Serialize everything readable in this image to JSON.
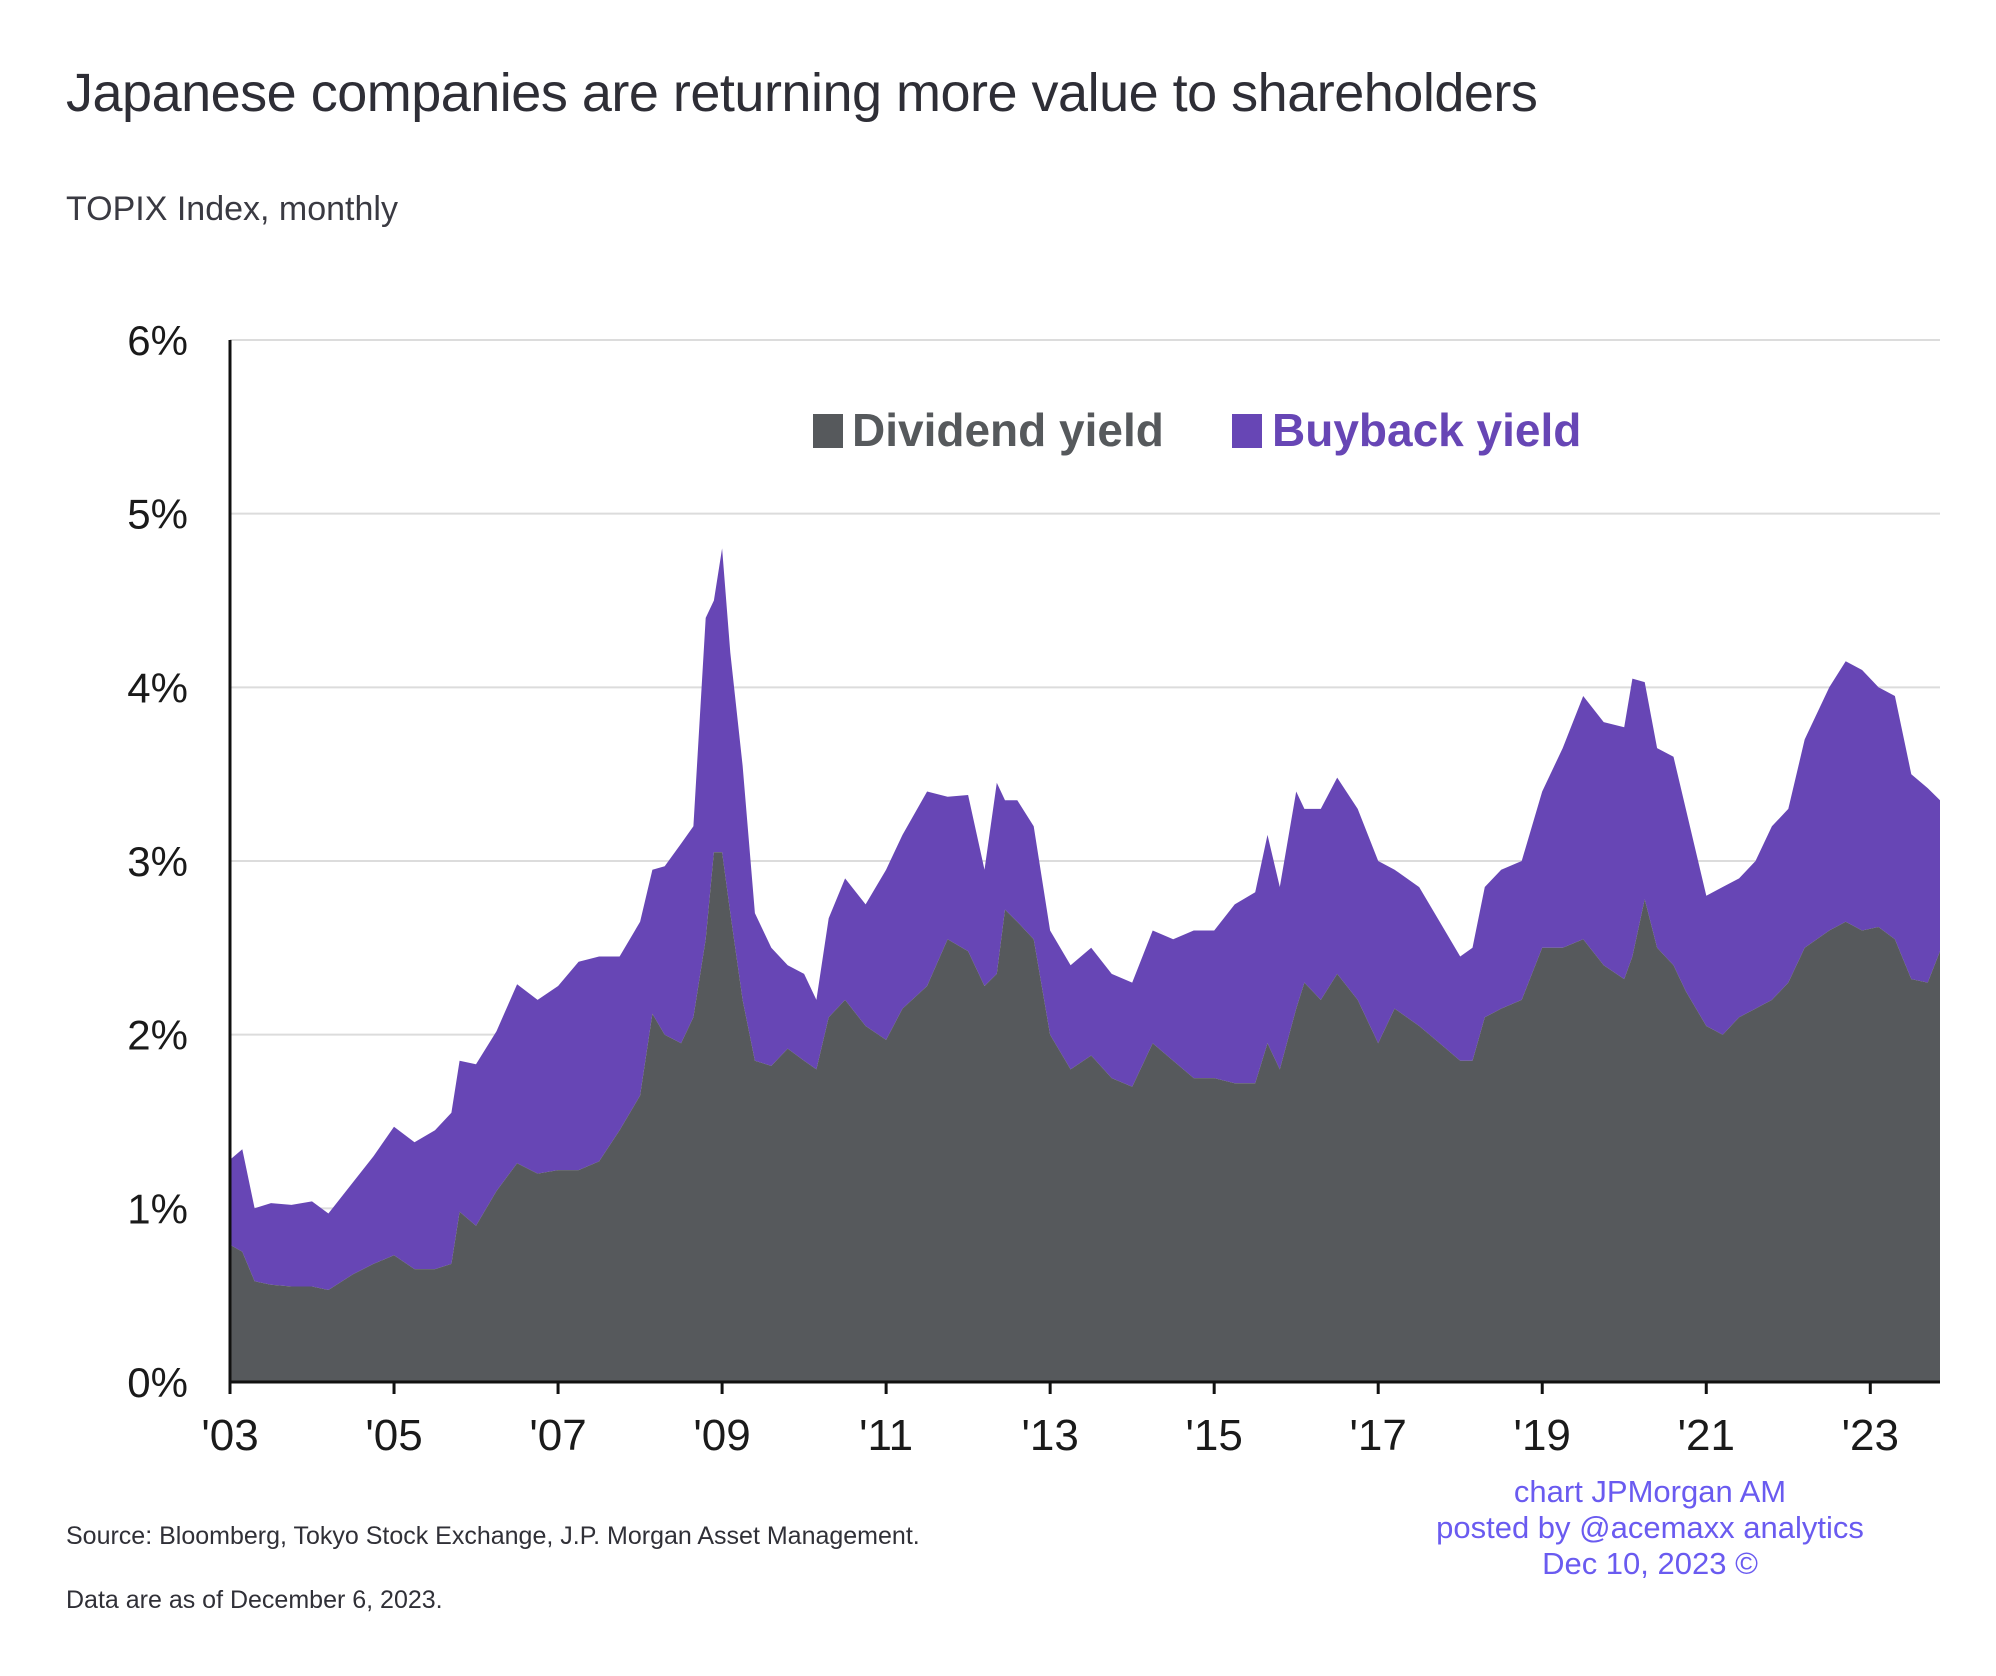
{
  "header": {
    "title": "Japanese companies are returning more value to shareholders",
    "subtitle": "TOPIX Index, monthly"
  },
  "footer": {
    "source": "Source: Bloomberg, Tokyo Stock Exchange, J.P. Morgan Asset Management.",
    "as_of": "Data are as of December 6, 2023."
  },
  "credit": {
    "line1": "chart JPMorgan AM",
    "line2": "posted by @acemaxx analytics",
    "line3": "Dec 10, 2023 ©"
  },
  "colors": {
    "dividend": "#56595c",
    "buyback": "#6746b5",
    "grid": "#dcdcdc",
    "axis": "#111111",
    "credit": "#6a5bf0"
  },
  "chart_data": {
    "type": "area",
    "stacked": true,
    "title": "Japanese companies are returning more value to shareholders",
    "subtitle": "TOPIX Index, monthly",
    "ylim": [
      0,
      6
    ],
    "yticks": [
      "0%",
      "1%",
      "2%",
      "3%",
      "4%",
      "5%",
      "6%"
    ],
    "xlim": [
      2003.0,
      2023.85
    ],
    "xticks": [
      {
        "x": 2003,
        "label": "'03"
      },
      {
        "x": 2005,
        "label": "'05"
      },
      {
        "x": 2007,
        "label": "'07"
      },
      {
        "x": 2009,
        "label": "'09"
      },
      {
        "x": 2011,
        "label": "'11"
      },
      {
        "x": 2013,
        "label": "'13"
      },
      {
        "x": 2015,
        "label": "'15"
      },
      {
        "x": 2017,
        "label": "'17"
      },
      {
        "x": 2019,
        "label": "'19"
      },
      {
        "x": 2021,
        "label": "'21"
      },
      {
        "x": 2023,
        "label": "'23"
      }
    ],
    "grid": true,
    "legend_position": "top-center",
    "series": [
      {
        "name": "Dividend yield",
        "color": "#56595c",
        "points": [
          [
            2003.0,
            0.79
          ],
          [
            2003.15,
            0.75
          ],
          [
            2003.3,
            0.58
          ],
          [
            2003.5,
            0.56
          ],
          [
            2003.75,
            0.55
          ],
          [
            2004.0,
            0.55
          ],
          [
            2004.2,
            0.53
          ],
          [
            2004.5,
            0.62
          ],
          [
            2004.75,
            0.68
          ],
          [
            2005.0,
            0.73
          ],
          [
            2005.25,
            0.65
          ],
          [
            2005.5,
            0.65
          ],
          [
            2005.7,
            0.68
          ],
          [
            2005.8,
            0.98
          ],
          [
            2006.0,
            0.9
          ],
          [
            2006.25,
            1.1
          ],
          [
            2006.5,
            1.26
          ],
          [
            2006.75,
            1.2
          ],
          [
            2007.0,
            1.22
          ],
          [
            2007.25,
            1.22
          ],
          [
            2007.5,
            1.27
          ],
          [
            2007.75,
            1.45
          ],
          [
            2008.0,
            1.65
          ],
          [
            2008.15,
            2.12
          ],
          [
            2008.3,
            2.0
          ],
          [
            2008.5,
            1.95
          ],
          [
            2008.65,
            2.1
          ],
          [
            2008.8,
            2.55
          ],
          [
            2008.9,
            3.05
          ],
          [
            2009.0,
            3.05
          ],
          [
            2009.1,
            2.7
          ],
          [
            2009.25,
            2.2
          ],
          [
            2009.4,
            1.85
          ],
          [
            2009.6,
            1.82
          ],
          [
            2009.8,
            1.92
          ],
          [
            2010.0,
            1.85
          ],
          [
            2010.15,
            1.8
          ],
          [
            2010.3,
            2.1
          ],
          [
            2010.5,
            2.2
          ],
          [
            2010.75,
            2.05
          ],
          [
            2011.0,
            1.97
          ],
          [
            2011.2,
            2.15
          ],
          [
            2011.5,
            2.28
          ],
          [
            2011.75,
            2.55
          ],
          [
            2012.0,
            2.48
          ],
          [
            2012.2,
            2.28
          ],
          [
            2012.35,
            2.35
          ],
          [
            2012.45,
            2.72
          ],
          [
            2012.6,
            2.65
          ],
          [
            2012.8,
            2.55
          ],
          [
            2013.0,
            2.0
          ],
          [
            2013.25,
            1.8
          ],
          [
            2013.5,
            1.88
          ],
          [
            2013.75,
            1.75
          ],
          [
            2014.0,
            1.7
          ],
          [
            2014.25,
            1.95
          ],
          [
            2014.5,
            1.85
          ],
          [
            2014.75,
            1.75
          ],
          [
            2015.0,
            1.75
          ],
          [
            2015.25,
            1.72
          ],
          [
            2015.5,
            1.72
          ],
          [
            2015.65,
            1.95
          ],
          [
            2015.8,
            1.8
          ],
          [
            2016.0,
            2.15
          ],
          [
            2016.1,
            2.3
          ],
          [
            2016.3,
            2.2
          ],
          [
            2016.5,
            2.35
          ],
          [
            2016.75,
            2.2
          ],
          [
            2017.0,
            1.95
          ],
          [
            2017.2,
            2.15
          ],
          [
            2017.5,
            2.05
          ],
          [
            2017.75,
            1.95
          ],
          [
            2018.0,
            1.85
          ],
          [
            2018.15,
            1.85
          ],
          [
            2018.3,
            2.1
          ],
          [
            2018.5,
            2.15
          ],
          [
            2018.75,
            2.2
          ],
          [
            2019.0,
            2.5
          ],
          [
            2019.25,
            2.5
          ],
          [
            2019.5,
            2.55
          ],
          [
            2019.75,
            2.4
          ],
          [
            2020.0,
            2.32
          ],
          [
            2020.1,
            2.45
          ],
          [
            2020.25,
            2.78
          ],
          [
            2020.4,
            2.5
          ],
          [
            2020.6,
            2.4
          ],
          [
            2020.75,
            2.25
          ],
          [
            2021.0,
            2.05
          ],
          [
            2021.2,
            2.0
          ],
          [
            2021.4,
            2.1
          ],
          [
            2021.6,
            2.15
          ],
          [
            2021.8,
            2.2
          ],
          [
            2022.0,
            2.3
          ],
          [
            2022.2,
            2.5
          ],
          [
            2022.5,
            2.6
          ],
          [
            2022.7,
            2.65
          ],
          [
            2022.9,
            2.6
          ],
          [
            2023.1,
            2.62
          ],
          [
            2023.3,
            2.55
          ],
          [
            2023.5,
            2.32
          ],
          [
            2023.7,
            2.3
          ],
          [
            2023.85,
            2.48
          ]
        ]
      },
      {
        "name": "Buyback yield",
        "color": "#6746b5",
        "points": [
          [
            2003.0,
            0.49
          ],
          [
            2003.15,
            0.59
          ],
          [
            2003.3,
            0.42
          ],
          [
            2003.5,
            0.47
          ],
          [
            2003.75,
            0.47
          ],
          [
            2004.0,
            0.49
          ],
          [
            2004.2,
            0.44
          ],
          [
            2004.5,
            0.53
          ],
          [
            2004.75,
            0.62
          ],
          [
            2005.0,
            0.74
          ],
          [
            2005.25,
            0.73
          ],
          [
            2005.5,
            0.8
          ],
          [
            2005.7,
            0.87
          ],
          [
            2005.8,
            0.87
          ],
          [
            2006.0,
            0.93
          ],
          [
            2006.25,
            0.92
          ],
          [
            2006.5,
            1.03
          ],
          [
            2006.75,
            1.0
          ],
          [
            2007.0,
            1.06
          ],
          [
            2007.25,
            1.2
          ],
          [
            2007.5,
            1.18
          ],
          [
            2007.75,
            1.0
          ],
          [
            2008.0,
            1.0
          ],
          [
            2008.15,
            0.83
          ],
          [
            2008.3,
            0.97
          ],
          [
            2008.5,
            1.15
          ],
          [
            2008.65,
            1.1
          ],
          [
            2008.8,
            1.85
          ],
          [
            2008.9,
            1.45
          ],
          [
            2009.0,
            1.75
          ],
          [
            2009.1,
            1.5
          ],
          [
            2009.25,
            1.35
          ],
          [
            2009.4,
            0.85
          ],
          [
            2009.6,
            0.68
          ],
          [
            2009.8,
            0.48
          ],
          [
            2010.0,
            0.5
          ],
          [
            2010.15,
            0.4
          ],
          [
            2010.3,
            0.57
          ],
          [
            2010.5,
            0.7
          ],
          [
            2010.75,
            0.7
          ],
          [
            2011.0,
            0.98
          ],
          [
            2011.2,
            1.0
          ],
          [
            2011.5,
            1.12
          ],
          [
            2011.75,
            0.82
          ],
          [
            2012.0,
            0.9
          ],
          [
            2012.2,
            0.67
          ],
          [
            2012.35,
            1.1
          ],
          [
            2012.45,
            0.63
          ],
          [
            2012.6,
            0.7
          ],
          [
            2012.8,
            0.65
          ],
          [
            2013.0,
            0.6
          ],
          [
            2013.25,
            0.6
          ],
          [
            2013.5,
            0.62
          ],
          [
            2013.75,
            0.6
          ],
          [
            2014.0,
            0.6
          ],
          [
            2014.25,
            0.65
          ],
          [
            2014.5,
            0.7
          ],
          [
            2014.75,
            0.85
          ],
          [
            2015.0,
            0.85
          ],
          [
            2015.25,
            1.03
          ],
          [
            2015.5,
            1.1
          ],
          [
            2015.65,
            1.2
          ],
          [
            2015.8,
            1.05
          ],
          [
            2016.0,
            1.25
          ],
          [
            2016.1,
            1.0
          ],
          [
            2016.3,
            1.1
          ],
          [
            2016.5,
            1.13
          ],
          [
            2016.75,
            1.1
          ],
          [
            2017.0,
            1.05
          ],
          [
            2017.2,
            0.8
          ],
          [
            2017.5,
            0.8
          ],
          [
            2017.75,
            0.7
          ],
          [
            2018.0,
            0.6
          ],
          [
            2018.15,
            0.65
          ],
          [
            2018.3,
            0.75
          ],
          [
            2018.5,
            0.8
          ],
          [
            2018.75,
            0.8
          ],
          [
            2019.0,
            0.9
          ],
          [
            2019.25,
            1.15
          ],
          [
            2019.5,
            1.4
          ],
          [
            2019.75,
            1.4
          ],
          [
            2020.0,
            1.45
          ],
          [
            2020.1,
            1.6
          ],
          [
            2020.25,
            1.25
          ],
          [
            2020.4,
            1.15
          ],
          [
            2020.6,
            1.2
          ],
          [
            2020.75,
            1.05
          ],
          [
            2021.0,
            0.75
          ],
          [
            2021.2,
            0.85
          ],
          [
            2021.4,
            0.8
          ],
          [
            2021.6,
            0.85
          ],
          [
            2021.8,
            1.0
          ],
          [
            2022.0,
            1.0
          ],
          [
            2022.2,
            1.2
          ],
          [
            2022.5,
            1.4
          ],
          [
            2022.7,
            1.5
          ],
          [
            2022.9,
            1.5
          ],
          [
            2023.1,
            1.38
          ],
          [
            2023.3,
            1.4
          ],
          [
            2023.5,
            1.18
          ],
          [
            2023.7,
            1.12
          ],
          [
            2023.85,
            0.87
          ]
        ]
      }
    ]
  }
}
